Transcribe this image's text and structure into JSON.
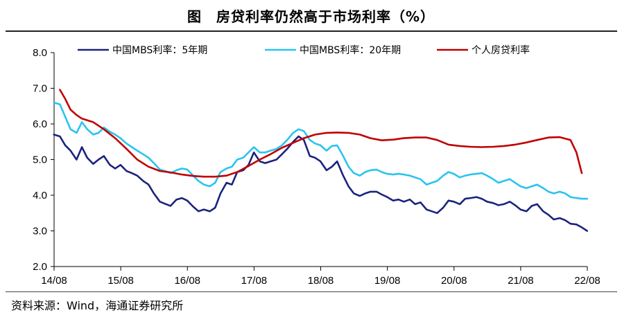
{
  "title": "图　房贷利率仍然高于市场利率（%）",
  "source": "资料来源：Wind，海通证券研究所",
  "colors": {
    "mbs5": "#1a237e",
    "mbs20": "#29c4f0",
    "mortgage": "#c00000",
    "axis": "#000000"
  },
  "chart_data": {
    "type": "line",
    "title": "房贷利率仍然高于市场利率（%）",
    "xlabel": "",
    "ylabel": "",
    "x_ticks": [
      "14/08",
      "15/08",
      "16/08",
      "17/08",
      "18/08",
      "19/08",
      "20/08",
      "21/08",
      "22/08"
    ],
    "xlim": [
      2014.583,
      2022.583
    ],
    "ylim": [
      2.0,
      8.0
    ],
    "y_ticks": [
      "2.0",
      "3.0",
      "4.0",
      "5.0",
      "6.0",
      "7.0",
      "8.0"
    ],
    "legend_position": "top",
    "series": [
      {
        "name": "中国MBS利率：5年期",
        "color_key": "mbs5",
        "points": [
          [
            2014.58,
            5.7
          ],
          [
            2014.67,
            5.65
          ],
          [
            2014.75,
            5.4
          ],
          [
            2014.83,
            5.25
          ],
          [
            2014.92,
            5.0
          ],
          [
            2015.0,
            5.35
          ],
          [
            2015.08,
            5.05
          ],
          [
            2015.17,
            4.88
          ],
          [
            2015.25,
            5.0
          ],
          [
            2015.33,
            5.1
          ],
          [
            2015.42,
            4.85
          ],
          [
            2015.5,
            4.75
          ],
          [
            2015.58,
            4.85
          ],
          [
            2015.67,
            4.68
          ],
          [
            2015.75,
            4.62
          ],
          [
            2015.83,
            4.55
          ],
          [
            2015.92,
            4.4
          ],
          [
            2016.0,
            4.3
          ],
          [
            2016.08,
            4.05
          ],
          [
            2016.17,
            3.82
          ],
          [
            2016.25,
            3.76
          ],
          [
            2016.33,
            3.7
          ],
          [
            2016.42,
            3.88
          ],
          [
            2016.5,
            3.92
          ],
          [
            2016.58,
            3.85
          ],
          [
            2016.67,
            3.68
          ],
          [
            2016.75,
            3.55
          ],
          [
            2016.83,
            3.6
          ],
          [
            2016.92,
            3.55
          ],
          [
            2017.0,
            3.65
          ],
          [
            2017.08,
            4.05
          ],
          [
            2017.17,
            4.35
          ],
          [
            2017.25,
            4.3
          ],
          [
            2017.33,
            4.65
          ],
          [
            2017.42,
            4.7
          ],
          [
            2017.5,
            4.85
          ],
          [
            2017.58,
            5.2
          ],
          [
            2017.67,
            4.95
          ],
          [
            2017.75,
            4.9
          ],
          [
            2017.83,
            4.95
          ],
          [
            2017.92,
            5.0
          ],
          [
            2018.0,
            5.15
          ],
          [
            2018.08,
            5.3
          ],
          [
            2018.17,
            5.5
          ],
          [
            2018.25,
            5.65
          ],
          [
            2018.33,
            5.55
          ],
          [
            2018.42,
            5.1
          ],
          [
            2018.5,
            5.05
          ],
          [
            2018.58,
            4.95
          ],
          [
            2018.67,
            4.7
          ],
          [
            2018.75,
            4.8
          ],
          [
            2018.83,
            4.95
          ],
          [
            2018.92,
            4.55
          ],
          [
            2019.0,
            4.25
          ],
          [
            2019.08,
            4.05
          ],
          [
            2019.17,
            3.98
          ],
          [
            2019.25,
            4.05
          ],
          [
            2019.33,
            4.1
          ],
          [
            2019.42,
            4.1
          ],
          [
            2019.5,
            4.02
          ],
          [
            2019.58,
            3.95
          ],
          [
            2019.67,
            3.85
          ],
          [
            2019.75,
            3.88
          ],
          [
            2019.83,
            3.82
          ],
          [
            2019.92,
            3.88
          ],
          [
            2020.0,
            3.75
          ],
          [
            2020.08,
            3.8
          ],
          [
            2020.17,
            3.6
          ],
          [
            2020.25,
            3.55
          ],
          [
            2020.33,
            3.5
          ],
          [
            2020.42,
            3.65
          ],
          [
            2020.5,
            3.85
          ],
          [
            2020.58,
            3.82
          ],
          [
            2020.67,
            3.75
          ],
          [
            2020.75,
            3.9
          ],
          [
            2020.83,
            3.92
          ],
          [
            2020.92,
            3.95
          ],
          [
            2021.0,
            3.9
          ],
          [
            2021.08,
            3.82
          ],
          [
            2021.17,
            3.78
          ],
          [
            2021.25,
            3.72
          ],
          [
            2021.33,
            3.75
          ],
          [
            2021.42,
            3.82
          ],
          [
            2021.5,
            3.72
          ],
          [
            2021.58,
            3.6
          ],
          [
            2021.67,
            3.55
          ],
          [
            2021.75,
            3.7
          ],
          [
            2021.83,
            3.75
          ],
          [
            2021.92,
            3.55
          ],
          [
            2022.0,
            3.45
          ],
          [
            2022.08,
            3.32
          ],
          [
            2022.17,
            3.36
          ],
          [
            2022.25,
            3.3
          ],
          [
            2022.33,
            3.2
          ],
          [
            2022.42,
            3.18
          ],
          [
            2022.5,
            3.1
          ],
          [
            2022.58,
            3.0
          ]
        ]
      },
      {
        "name": "中国MBS利率：20年期",
        "color_key": "mbs20",
        "points": [
          [
            2014.58,
            6.6
          ],
          [
            2014.67,
            6.55
          ],
          [
            2014.75,
            6.2
          ],
          [
            2014.83,
            5.85
          ],
          [
            2014.92,
            5.75
          ],
          [
            2015.0,
            6.05
          ],
          [
            2015.08,
            5.85
          ],
          [
            2015.17,
            5.7
          ],
          [
            2015.25,
            5.75
          ],
          [
            2015.33,
            5.9
          ],
          [
            2015.42,
            5.78
          ],
          [
            2015.5,
            5.7
          ],
          [
            2015.58,
            5.6
          ],
          [
            2015.67,
            5.45
          ],
          [
            2015.75,
            5.35
          ],
          [
            2015.83,
            5.25
          ],
          [
            2015.92,
            5.15
          ],
          [
            2016.0,
            5.05
          ],
          [
            2016.08,
            4.9
          ],
          [
            2016.17,
            4.72
          ],
          [
            2016.25,
            4.68
          ],
          [
            2016.33,
            4.62
          ],
          [
            2016.42,
            4.7
          ],
          [
            2016.5,
            4.75
          ],
          [
            2016.58,
            4.72
          ],
          [
            2016.67,
            4.55
          ],
          [
            2016.75,
            4.4
          ],
          [
            2016.83,
            4.3
          ],
          [
            2016.92,
            4.25
          ],
          [
            2017.0,
            4.35
          ],
          [
            2017.08,
            4.65
          ],
          [
            2017.17,
            4.75
          ],
          [
            2017.25,
            4.8
          ],
          [
            2017.33,
            5.0
          ],
          [
            2017.42,
            5.05
          ],
          [
            2017.5,
            5.2
          ],
          [
            2017.58,
            5.35
          ],
          [
            2017.67,
            5.2
          ],
          [
            2017.75,
            5.2
          ],
          [
            2017.83,
            5.25
          ],
          [
            2017.92,
            5.3
          ],
          [
            2018.0,
            5.4
          ],
          [
            2018.08,
            5.55
          ],
          [
            2018.17,
            5.75
          ],
          [
            2018.25,
            5.85
          ],
          [
            2018.33,
            5.8
          ],
          [
            2018.42,
            5.55
          ],
          [
            2018.5,
            5.45
          ],
          [
            2018.58,
            5.4
          ],
          [
            2018.67,
            5.25
          ],
          [
            2018.75,
            5.38
          ],
          [
            2018.83,
            5.4
          ],
          [
            2018.92,
            5.1
          ],
          [
            2019.0,
            4.8
          ],
          [
            2019.08,
            4.62
          ],
          [
            2019.17,
            4.55
          ],
          [
            2019.25,
            4.65
          ],
          [
            2019.33,
            4.7
          ],
          [
            2019.42,
            4.72
          ],
          [
            2019.5,
            4.65
          ],
          [
            2019.58,
            4.6
          ],
          [
            2019.67,
            4.58
          ],
          [
            2019.75,
            4.6
          ],
          [
            2019.83,
            4.58
          ],
          [
            2019.92,
            4.55
          ],
          [
            2020.0,
            4.5
          ],
          [
            2020.08,
            4.45
          ],
          [
            2020.17,
            4.3
          ],
          [
            2020.25,
            4.35
          ],
          [
            2020.33,
            4.4
          ],
          [
            2020.42,
            4.55
          ],
          [
            2020.5,
            4.65
          ],
          [
            2020.58,
            4.6
          ],
          [
            2020.67,
            4.5
          ],
          [
            2020.75,
            4.55
          ],
          [
            2020.83,
            4.58
          ],
          [
            2020.92,
            4.6
          ],
          [
            2021.0,
            4.62
          ],
          [
            2021.08,
            4.55
          ],
          [
            2021.17,
            4.45
          ],
          [
            2021.25,
            4.35
          ],
          [
            2021.33,
            4.4
          ],
          [
            2021.42,
            4.45
          ],
          [
            2021.5,
            4.35
          ],
          [
            2021.58,
            4.25
          ],
          [
            2021.67,
            4.2
          ],
          [
            2021.75,
            4.25
          ],
          [
            2021.83,
            4.3
          ],
          [
            2021.92,
            4.2
          ],
          [
            2022.0,
            4.1
          ],
          [
            2022.08,
            4.05
          ],
          [
            2022.17,
            4.1
          ],
          [
            2022.25,
            4.05
          ],
          [
            2022.33,
            3.95
          ],
          [
            2022.42,
            3.92
          ],
          [
            2022.5,
            3.9
          ],
          [
            2022.58,
            3.9
          ]
        ]
      },
      {
        "name": "个人房贷利率",
        "color_key": "mortgage",
        "points": [
          [
            2014.67,
            6.96
          ],
          [
            2014.75,
            6.7
          ],
          [
            2014.83,
            6.4
          ],
          [
            2014.92,
            6.25
          ],
          [
            2015.0,
            6.15
          ],
          [
            2015.17,
            6.05
          ],
          [
            2015.33,
            5.85
          ],
          [
            2015.5,
            5.6
          ],
          [
            2015.67,
            5.3
          ],
          [
            2015.83,
            5.0
          ],
          [
            2016.0,
            4.8
          ],
          [
            2016.17,
            4.68
          ],
          [
            2016.33,
            4.64
          ],
          [
            2016.5,
            4.58
          ],
          [
            2016.67,
            4.54
          ],
          [
            2016.83,
            4.52
          ],
          [
            2017.0,
            4.52
          ],
          [
            2017.17,
            4.55
          ],
          [
            2017.33,
            4.65
          ],
          [
            2017.5,
            4.82
          ],
          [
            2017.67,
            5.0
          ],
          [
            2017.83,
            5.15
          ],
          [
            2018.0,
            5.33
          ],
          [
            2018.17,
            5.47
          ],
          [
            2018.33,
            5.6
          ],
          [
            2018.5,
            5.7
          ],
          [
            2018.67,
            5.75
          ],
          [
            2018.83,
            5.76
          ],
          [
            2019.0,
            5.75
          ],
          [
            2019.17,
            5.7
          ],
          [
            2019.33,
            5.6
          ],
          [
            2019.5,
            5.54
          ],
          [
            2019.67,
            5.56
          ],
          [
            2019.83,
            5.6
          ],
          [
            2020.0,
            5.62
          ],
          [
            2020.17,
            5.62
          ],
          [
            2020.33,
            5.55
          ],
          [
            2020.5,
            5.42
          ],
          [
            2020.67,
            5.38
          ],
          [
            2020.83,
            5.36
          ],
          [
            2021.0,
            5.35
          ],
          [
            2021.17,
            5.36
          ],
          [
            2021.33,
            5.38
          ],
          [
            2021.5,
            5.42
          ],
          [
            2021.67,
            5.48
          ],
          [
            2021.83,
            5.55
          ],
          [
            2022.0,
            5.62
          ],
          [
            2022.17,
            5.63
          ],
          [
            2022.33,
            5.55
          ],
          [
            2022.42,
            5.2
          ],
          [
            2022.5,
            4.62
          ]
        ]
      }
    ]
  }
}
